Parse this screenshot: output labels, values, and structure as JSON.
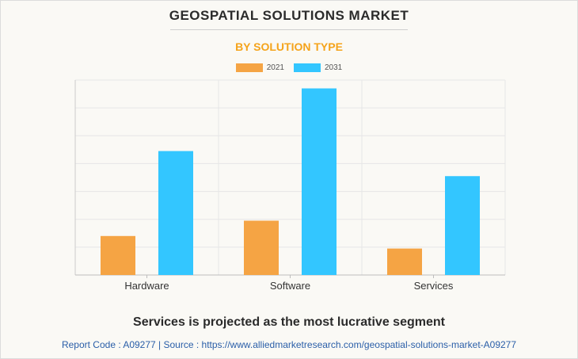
{
  "title": "GEOSPATIAL SOLUTIONS MARKET",
  "subtitle": "BY SOLUTION TYPE",
  "colors": {
    "series_2021": "#f5a444",
    "series_2031": "#33c6ff",
    "subtitle": "#f5a31a"
  },
  "chart_data": {
    "type": "bar",
    "categories": [
      "Hardware",
      "Software",
      "Services"
    ],
    "series": [
      {
        "name": "2021",
        "values": [
          1.4,
          1.95,
          0.95
        ]
      },
      {
        "name": "2031",
        "values": [
          4.45,
          6.7,
          3.55
        ]
      }
    ],
    "ylim": [
      0,
      7
    ],
    "grid": true,
    "legend": "top-center"
  },
  "footer": {
    "headline": "Services is projected as the most lucrative segment",
    "source": "Report Code : A09277  |  Source : https://www.alliedmarketresearch.com/geospatial-solutions-market-A09277"
  }
}
